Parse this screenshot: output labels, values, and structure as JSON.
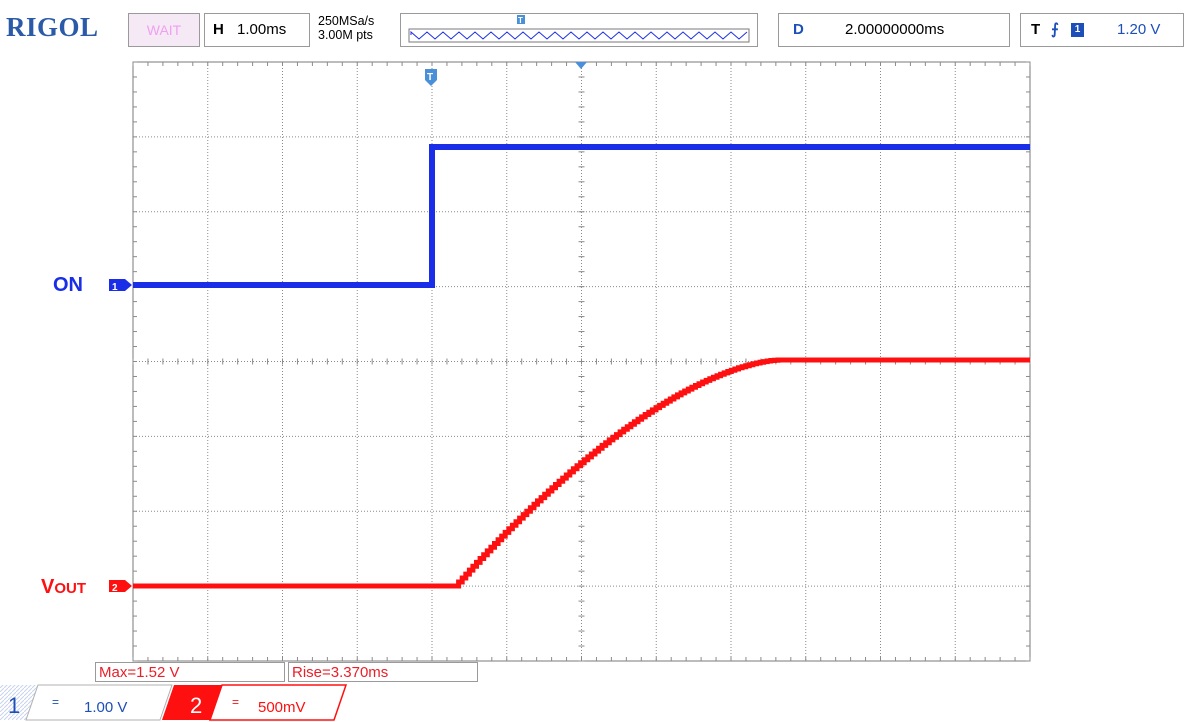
{
  "header": {
    "logo": "RIGOL",
    "run_status": "WAIT",
    "timebase_key": "H",
    "timebase_value": "1.00ms",
    "sample_rate": "250MSa/s",
    "memory_depth": "3.00M pts",
    "trigger_marker": "T",
    "delay_key": "D",
    "delay_value": "2.00000000ms",
    "trigger_key": "T",
    "trigger_edge": "rising-edge-icon",
    "trigger_source": "1",
    "trigger_level": "1.20 V"
  },
  "waveform": {
    "trigger_marker": "T",
    "ch1_label": "ON",
    "ch1_marker": "1",
    "ch2_label_main": "V",
    "ch2_label_sub": "OUT",
    "ch2_marker": "2",
    "ch1_color": "#1a2ee8",
    "ch2_color": "#ff1010"
  },
  "measurements": {
    "max": "Max=1.52 V",
    "rise": "Rise=3.370ms"
  },
  "channels": [
    {
      "number": "1",
      "coupling": "=",
      "scale": "1.00 V",
      "color": "#1c4fb8"
    },
    {
      "number": "2",
      "coupling": "=",
      "scale": "500mV",
      "color": "#ff1010"
    }
  ]
}
